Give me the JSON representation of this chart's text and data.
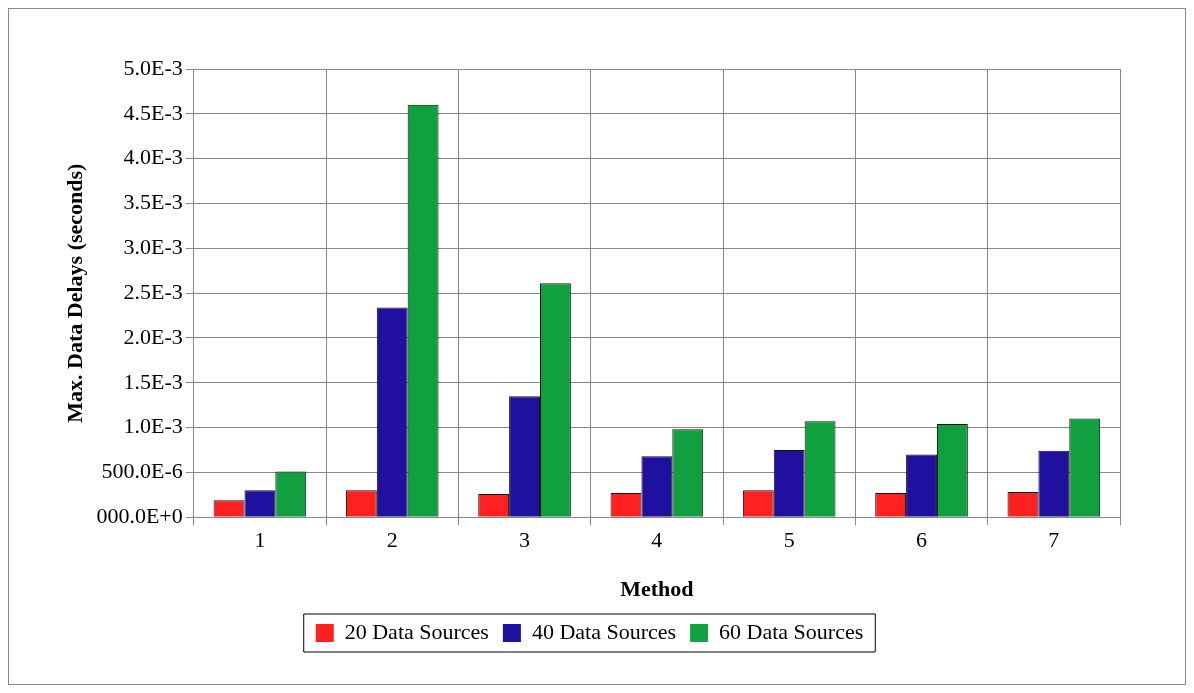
{
  "chart_data": {
    "type": "bar",
    "xlabel": "Method",
    "ylabel": "Max. Data Delays (seconds)",
    "categories": [
      "1",
      "2",
      "3",
      "4",
      "5",
      "6",
      "7"
    ],
    "series": [
      {
        "name": "20 Data Sources",
        "color": "#ff2020",
        "values": [
          0.00019,
          0.0003,
          0.00026,
          0.00027,
          0.0003,
          0.00027,
          0.00028
        ]
      },
      {
        "name": "40 Data Sources",
        "color": "#2010a0",
        "values": [
          0.0003,
          0.00234,
          0.00135,
          0.00068,
          0.00075,
          0.0007,
          0.00074
        ]
      },
      {
        "name": "60 Data Sources",
        "color": "#10a040",
        "values": [
          0.00051,
          0.0046,
          0.00261,
          0.00098,
          0.00107,
          0.00104,
          0.0011
        ]
      }
    ],
    "ylim": [
      0,
      0.005
    ],
    "yticks": [
      {
        "value": 0,
        "label": "000.0E+0"
      },
      {
        "value": 0.0005,
        "label": "500.0E-6"
      },
      {
        "value": 0.001,
        "label": "1.0E-3"
      },
      {
        "value": 0.0015,
        "label": "1.5E-3"
      },
      {
        "value": 0.002,
        "label": "2.0E-3"
      },
      {
        "value": 0.0025,
        "label": "2.5E-3"
      },
      {
        "value": 0.003,
        "label": "3.0E-3"
      },
      {
        "value": 0.0035,
        "label": "3.5E-3"
      },
      {
        "value": 0.004,
        "label": "4.0E-3"
      },
      {
        "value": 0.0045,
        "label": "4.5E-3"
      },
      {
        "value": 0.005,
        "label": "5.0E-3"
      }
    ],
    "grid": true,
    "legend": "bottom"
  }
}
